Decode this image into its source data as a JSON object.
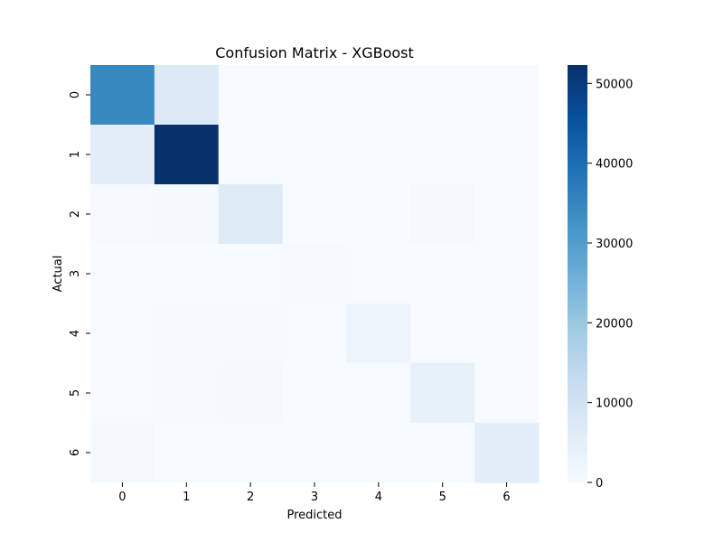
{
  "chart_data": {
    "type": "heatmap",
    "title": "Confusion Matrix - XGBoost",
    "xlabel": "Predicted",
    "ylabel": "Actual",
    "x_categories": [
      "0",
      "1",
      "2",
      "3",
      "4",
      "5",
      "6"
    ],
    "y_categories": [
      "0",
      "1",
      "2",
      "3",
      "4",
      "5",
      "6"
    ],
    "matrix": [
      [
        34500,
        7200,
        50,
        20,
        30,
        20,
        40
      ],
      [
        5200,
        52300,
        120,
        20,
        80,
        60,
        40
      ],
      [
        250,
        700,
        6600,
        60,
        200,
        800,
        150
      ],
      [
        30,
        60,
        120,
        550,
        70,
        50,
        20
      ],
      [
        80,
        500,
        250,
        30,
        2300,
        80,
        30
      ],
      [
        80,
        300,
        700,
        30,
        150,
        4200,
        80
      ],
      [
        800,
        200,
        100,
        20,
        30,
        100,
        5300
      ]
    ],
    "colormap": "Blues",
    "colorbar": {
      "min": 0,
      "max": 52300,
      "ticks": [
        0,
        10000,
        20000,
        30000,
        40000,
        50000
      ],
      "tick_labels": [
        "0",
        "10000",
        "20000",
        "30000",
        "40000",
        "50000"
      ]
    },
    "colors": {
      "low": "#f7fbff",
      "high": "#08306b",
      "text": "#000000"
    }
  }
}
